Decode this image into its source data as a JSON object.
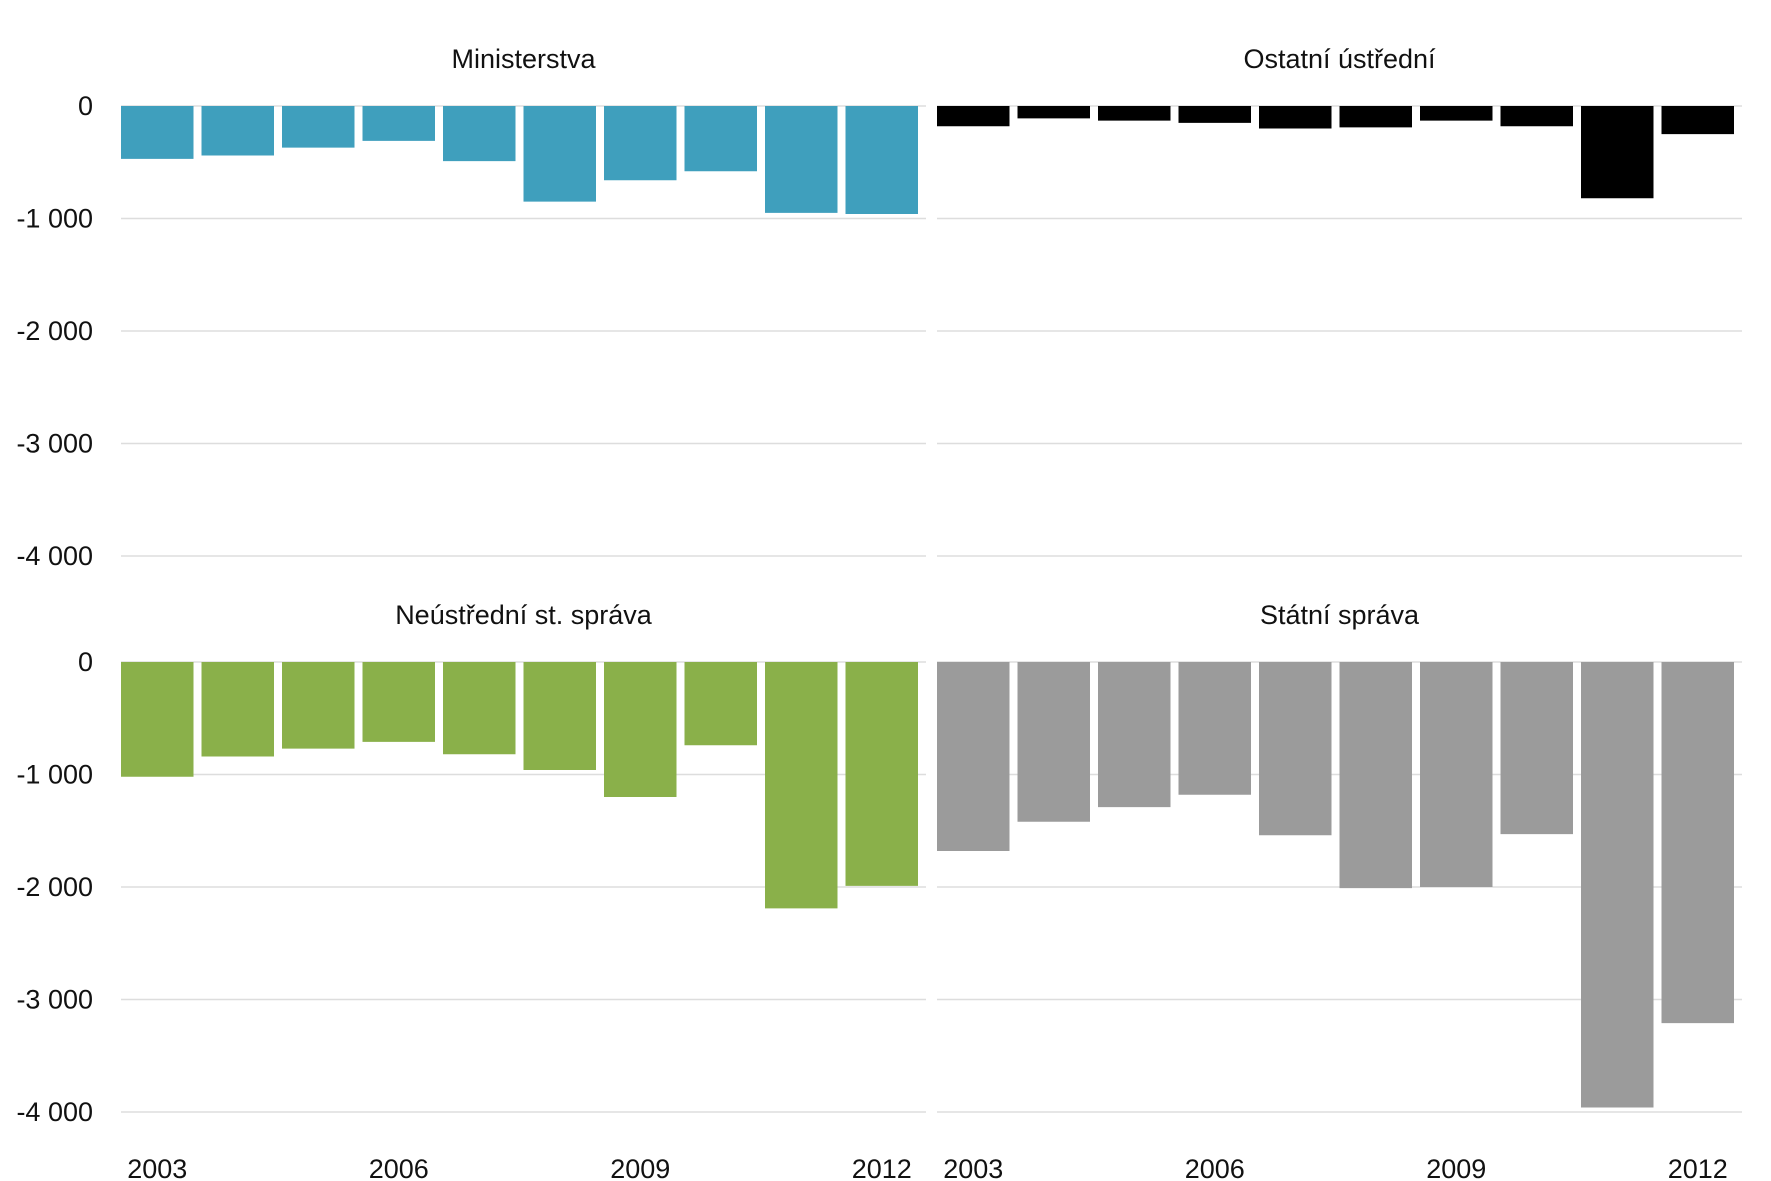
{
  "chart_data": {
    "type": "bar",
    "layout": "small-multiples 2x2, shared axes",
    "x": [
      2003,
      2004,
      2005,
      2006,
      2007,
      2008,
      2009,
      2010,
      2011,
      2012
    ],
    "x_tick_labels": [
      "2003",
      "2006",
      "2009",
      "2012"
    ],
    "y_tick_labels": [
      "0",
      "-1 000",
      "-2 000",
      "-3 000",
      "-4 000"
    ],
    "ylim": [
      -4000,
      0
    ],
    "grid": true,
    "legend": "none",
    "panels": [
      {
        "title": "Ministerstva",
        "color": "#3f9fbd",
        "values": [
          -470,
          -440,
          -370,
          -310,
          -490,
          -850,
          -660,
          -580,
          -950,
          -960
        ]
      },
      {
        "title": "Ostatní ústřední",
        "color": "#000000",
        "values": [
          -180,
          -110,
          -130,
          -150,
          -200,
          -190,
          -130,
          -180,
          -820,
          -250
        ]
      },
      {
        "title": "Neústřední st. správa",
        "color": "#8ab04a",
        "values": [
          -1020,
          -840,
          -770,
          -710,
          -820,
          -960,
          -1200,
          -740,
          -2190,
          -1990
        ]
      },
      {
        "title": "Státní správa",
        "color": "#9b9b9b",
        "values": [
          -1680,
          -1420,
          -1290,
          -1180,
          -1540,
          -2010,
          -2000,
          -1530,
          -3960,
          -3210
        ]
      }
    ]
  }
}
